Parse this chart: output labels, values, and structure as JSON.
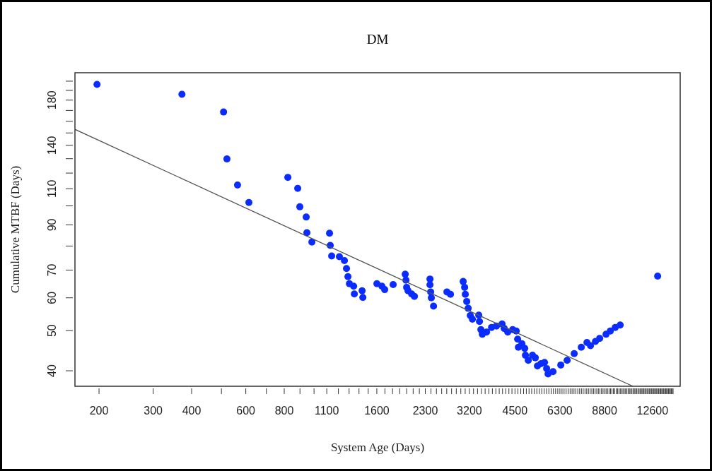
{
  "chart_data": {
    "type": "scatter",
    "title": "DM",
    "xlabel": "System Age (Days)",
    "ylabel": "Cumulative MTBF (Days)",
    "log": "xy",
    "grid": false,
    "xlim": [
      167,
      15500
    ],
    "ylim": [
      36.7,
      209.6
    ],
    "xticks": [
      200,
      300,
      400,
      {
        "value": 500,
        "label": null
      },
      600,
      {
        "value": 700,
        "label": null
      },
      800,
      {
        "value": 900,
        "label": null
      },
      {
        "value": 1000,
        "label": null
      },
      1100,
      {
        "value": 1200,
        "label": null
      },
      {
        "value": 1300,
        "label": null
      },
      {
        "value": 1400,
        "label": null
      },
      {
        "value": 1500,
        "label": null
      },
      1600,
      {
        "value": 1700,
        "label": null
      },
      {
        "value": 1800,
        "label": null
      },
      {
        "value": 1900,
        "label": null
      },
      {
        "value": 2000,
        "label": null
      },
      {
        "value": 2100,
        "label": null
      },
      {
        "value": 2200,
        "label": null
      },
      2300,
      {
        "value": 2400,
        "label": null
      },
      {
        "value": 2500,
        "label": null
      },
      {
        "value": 2600,
        "label": null
      },
      {
        "value": 2700,
        "label": null
      },
      {
        "value": 2800,
        "label": null
      },
      {
        "value": 2900,
        "label": null
      },
      {
        "value": 3000,
        "label": null
      },
      {
        "value": 3100,
        "label": null
      },
      3200,
      {
        "value": 3300,
        "label": null
      },
      {
        "value": 3400,
        "label": null
      },
      {
        "value": 3500,
        "label": null
      },
      {
        "value": 3600,
        "label": null
      },
      {
        "value": 3700,
        "label": null
      },
      {
        "value": 3800,
        "label": null
      },
      {
        "value": 3900,
        "label": null
      },
      {
        "value": 4000,
        "label": null
      },
      {
        "value": 4100,
        "label": null
      },
      {
        "value": 4200,
        "label": null
      },
      {
        "value": 4300,
        "label": null
      },
      {
        "value": 4400,
        "label": null
      },
      4500,
      {
        "value": 4600,
        "label": null
      },
      {
        "value": 4700,
        "label": null
      },
      {
        "value": 4800,
        "label": null
      },
      {
        "value": 4900,
        "label": null
      },
      {
        "value": 5000,
        "label": null
      },
      {
        "value": 5100,
        "label": null
      },
      {
        "value": 5200,
        "label": null
      },
      {
        "value": 5300,
        "label": null
      },
      {
        "value": 5400,
        "label": null
      },
      {
        "value": 5500,
        "label": null
      },
      {
        "value": 5600,
        "label": null
      },
      {
        "value": 5700,
        "label": null
      },
      {
        "value": 5800,
        "label": null
      },
      {
        "value": 5900,
        "label": null
      },
      {
        "value": 6000,
        "label": null
      },
      {
        "value": 6100,
        "label": null
      },
      {
        "value": 6200,
        "label": null
      },
      6300,
      {
        "value": 6400,
        "label": null
      },
      {
        "value": 6500,
        "label": null
      },
      {
        "value": 6600,
        "label": null
      },
      {
        "value": 6700,
        "label": null
      },
      {
        "value": 6800,
        "label": null
      },
      {
        "value": 6900,
        "label": null
      },
      {
        "value": 7000,
        "label": null
      },
      {
        "value": 7100,
        "label": null
      },
      {
        "value": 7200,
        "label": null
      },
      {
        "value": 7300,
        "label": null
      },
      {
        "value": 7400,
        "label": null
      },
      {
        "value": 7500,
        "label": null
      },
      {
        "value": 7600,
        "label": null
      },
      {
        "value": 7700,
        "label": null
      },
      {
        "value": 7800,
        "label": null
      },
      {
        "value": 7900,
        "label": null
      },
      {
        "value": 8000,
        "label": null
      },
      {
        "value": 8100,
        "label": null
      },
      {
        "value": 8200,
        "label": null
      },
      {
        "value": 8300,
        "label": null
      },
      {
        "value": 8400,
        "label": null
      },
      {
        "value": 8500,
        "label": null
      },
      {
        "value": 8600,
        "label": null
      },
      {
        "value": 8700,
        "label": null
      },
      8800,
      {
        "value": 8900,
        "label": null
      },
      {
        "value": 9000,
        "label": null
      },
      {
        "value": 9100,
        "label": null
      },
      {
        "value": 9200,
        "label": null
      },
      {
        "value": 9300,
        "label": null
      },
      {
        "value": 9400,
        "label": null
      },
      {
        "value": 9500,
        "label": null
      },
      {
        "value": 9600,
        "label": null
      },
      {
        "value": 9700,
        "label": null
      },
      {
        "value": 9800,
        "label": null
      },
      {
        "value": 9900,
        "label": null
      },
      {
        "value": 10000,
        "label": null
      },
      {
        "value": 10100,
        "label": null
      },
      {
        "value": 10200,
        "label": null
      },
      {
        "value": 10300,
        "label": null
      },
      {
        "value": 10400,
        "label": null
      },
      {
        "value": 10500,
        "label": null
      },
      {
        "value": 10600,
        "label": null
      },
      {
        "value": 10700,
        "label": null
      },
      {
        "value": 10800,
        "label": null
      },
      {
        "value": 10900,
        "label": null
      },
      {
        "value": 11000,
        "label": null
      },
      {
        "value": 11100,
        "label": null
      },
      {
        "value": 11200,
        "label": null
      },
      {
        "value": 11300,
        "label": null
      },
      {
        "value": 11400,
        "label": null
      },
      {
        "value": 11500,
        "label": null
      },
      {
        "value": 11600,
        "label": null
      },
      {
        "value": 11700,
        "label": null
      },
      {
        "value": 11800,
        "label": null
      },
      {
        "value": 11900,
        "label": null
      },
      {
        "value": 12000,
        "label": null
      },
      {
        "value": 12100,
        "label": null
      },
      {
        "value": 12200,
        "label": null
      },
      {
        "value": 12300,
        "label": null
      },
      {
        "value": 12400,
        "label": null
      },
      {
        "value": 12500,
        "label": null
      },
      12600,
      {
        "value": 12700,
        "label": null
      },
      {
        "value": 12800,
        "label": null
      },
      {
        "value": 12900,
        "label": null
      },
      {
        "value": 13000,
        "label": null
      },
      {
        "value": 13100,
        "label": null
      },
      {
        "value": 13200,
        "label": null
      },
      {
        "value": 13300,
        "label": null
      },
      {
        "value": 13400,
        "label": null
      },
      {
        "value": 13500,
        "label": null
      },
      {
        "value": 13600,
        "label": null
      },
      {
        "value": 13700,
        "label": null
      },
      {
        "value": 13800,
        "label": null
      },
      {
        "value": 13900,
        "label": null
      },
      {
        "value": 14000,
        "label": null
      },
      {
        "value": 14100,
        "label": null
      },
      {
        "value": 14200,
        "label": null
      },
      {
        "value": 14300,
        "label": null
      },
      {
        "value": 14400,
        "label": null
      },
      {
        "value": 14500,
        "label": null
      },
      {
        "value": 14600,
        "label": null
      },
      {
        "value": 14700,
        "label": null
      }
    ],
    "yticks": [
      40,
      50,
      60,
      70,
      {
        "value": 80,
        "label": null
      },
      90,
      {
        "value": 100,
        "label": null
      },
      110,
      {
        "value": 120,
        "label": null
      },
      {
        "value": 130,
        "label": null
      },
      140,
      {
        "value": 150,
        "label": null
      },
      {
        "value": 160,
        "label": null
      },
      {
        "value": 170,
        "label": null
      },
      180,
      {
        "value": 190,
        "label": null
      },
      {
        "value": 200,
        "label": null
      }
    ],
    "series": [
      {
        "marker": "circle",
        "color": "#0a2cff",
        "x": [
          197,
          372,
          508,
          521,
          564,
          614,
          822,
          885,
          899,
          943,
          948,
          984,
          1123,
          1129,
          1141,
          1209,
          1255,
          1275,
          1289,
          1303,
          1345,
          1352,
          1433,
          1441,
          1601,
          1662,
          1697,
          1808,
          1979,
          1990,
          2000,
          2021,
          2076,
          2120,
          2382,
          2382,
          2394,
          2406,
          2446,
          2704,
          2777,
          3054,
          3087,
          3103,
          3136,
          3170,
          3221,
          3272,
          3432,
          3450,
          3487,
          3524,
          3638,
          3776,
          3917,
          4086,
          4152,
          4263,
          4424,
          4543,
          4591,
          4616,
          4740,
          4841,
          4867,
          4971,
          5131,
          5241,
          5325,
          5467,
          5614,
          5704,
          5765,
          5983,
          6341,
          6650,
          7011,
          7392,
          7713,
          7920,
          8219,
          8484,
          8898,
          9187,
          9533,
          9892,
          13095
        ],
        "values": [
          196.4,
          186,
          168.5,
          129.8,
          112.3,
          101.9,
          117.2,
          110.2,
          99.5,
          94,
          86.2,
          81.8,
          85.9,
          80.3,
          75.7,
          75.4,
          73.8,
          70.6,
          67.5,
          64.9,
          64,
          61.3,
          62.4,
          60.1,
          64.9,
          64,
          62.8,
          64.6,
          68.4,
          66.2,
          63.6,
          62.4,
          61.3,
          60.5,
          66.6,
          64.5,
          62,
          60,
          57.3,
          62,
          61.2,
          65.7,
          63.6,
          61.2,
          58.8,
          56.6,
          54.4,
          53.3,
          54.5,
          52.6,
          50.3,
          49,
          49.6,
          50.9,
          51.3,
          51.9,
          50.6,
          49.6,
          50.3,
          49.9,
          47.7,
          45.6,
          46.5,
          45.3,
          43.6,
          42.4,
          43.6,
          43,
          41.1,
          41.6,
          41.9,
          40.5,
          39.3,
          39.8,
          41.3,
          42.4,
          44,
          45.6,
          46.8,
          46,
          47.1,
          47.9,
          49,
          49.9,
          50.9,
          51.6,
          67.7
        ]
      },
      {
        "type": "line",
        "color": "#555555",
        "x": [
          167,
          10880
        ],
        "values": [
          153,
          36.7
        ]
      }
    ]
  }
}
